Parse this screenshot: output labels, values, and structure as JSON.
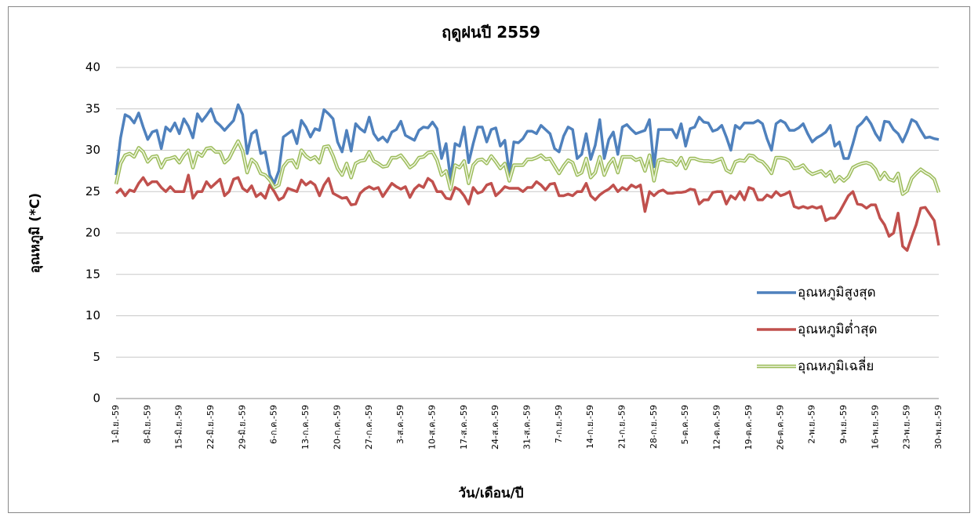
{
  "chart_data": {
    "type": "line",
    "title": "ฤดูฝนปี 2559",
    "x_label": "วัน/เดือน/ปี",
    "y_label": "อุณหภูมิ (*C)",
    "categories": [
      "1-มิ.ย.-59",
      null,
      null,
      null,
      null,
      null,
      null,
      "8-มิ.ย.-59",
      null,
      null,
      null,
      null,
      null,
      null,
      "15-มิ.ย.-59",
      null,
      null,
      null,
      null,
      null,
      null,
      "22-มิ.ย.-59",
      null,
      null,
      null,
      null,
      null,
      null,
      "29-มิ.ย.-59",
      null,
      null,
      null,
      null,
      null,
      null,
      "6-ก.ค.-59",
      null,
      null,
      null,
      null,
      null,
      null,
      "13-ก.ค.-59",
      null,
      null,
      null,
      null,
      null,
      null,
      "20-ก.ค.-59",
      null,
      null,
      null,
      null,
      null,
      null,
      "27-ก.ค.-59",
      null,
      null,
      null,
      null,
      null,
      null,
      "3-ส.ค.-59",
      null,
      null,
      null,
      null,
      null,
      null,
      "10-ส.ค.-59",
      null,
      null,
      null,
      null,
      null,
      null,
      "17-ส.ค.-59",
      null,
      null,
      null,
      null,
      null,
      null,
      "24-ส.ค.-59",
      null,
      null,
      null,
      null,
      null,
      null,
      "31-ส.ค.-59",
      null,
      null,
      null,
      null,
      null,
      null,
      "7-ก.ย.-59",
      null,
      null,
      null,
      null,
      null,
      null,
      "14-ก.ย.-59",
      null,
      null,
      null,
      null,
      null,
      null,
      "21-ก.ย.-59",
      null,
      null,
      null,
      null,
      null,
      null,
      "28-ก.ย.-59",
      null,
      null,
      null,
      null,
      null,
      null,
      "5-ต.ค.-59",
      null,
      null,
      null,
      null,
      null,
      null,
      "12-ต.ค.-59",
      null,
      null,
      null,
      null,
      null,
      null,
      "19-ต.ค.-59",
      null,
      null,
      null,
      null,
      null,
      null,
      "26-ต.ค.-59",
      null,
      null,
      null,
      null,
      null,
      null,
      "2-พ.ย.-59",
      null,
      null,
      null,
      null,
      null,
      null,
      "9-พ.ย.-59",
      null,
      null,
      null,
      null,
      null,
      null,
      "16-พ.ย.-59",
      null,
      null,
      null,
      null,
      null,
      null,
      "23-พ.ย.-59",
      null,
      null,
      null,
      null,
      null,
      null,
      "30-พ.ย.-59"
    ],
    "series": [
      {
        "name": "อุณหภูมิสูงสุด",
        "color": "#4f81bd",
        "values": [
          27,
          31.5,
          34.3,
          34,
          33.3,
          34.5,
          32.8,
          31.3,
          32.2,
          32.4,
          30.2,
          32.8,
          32.3,
          33.3,
          32,
          33.8,
          32.9,
          31.5,
          34.4,
          33.5,
          34.2,
          35,
          33.5,
          33,
          32.4,
          33,
          33.6,
          35.5,
          34.3,
          29.6,
          32,
          32.4,
          29.6,
          29.8,
          27,
          26,
          27.5,
          31.6,
          32,
          32.4,
          30.8,
          33.6,
          32.8,
          31.6,
          32.6,
          32.4,
          34.9,
          34.4,
          33.8,
          31,
          29.8,
          32.4,
          29.9,
          33.2,
          32.6,
          32.2,
          34,
          32,
          31.2,
          31.6,
          31,
          32.2,
          32.5,
          33.5,
          31.8,
          31.5,
          31.2,
          32.4,
          32.8,
          32.7,
          33.4,
          32.6,
          29,
          30.8,
          26.5,
          30.8,
          30.5,
          32.8,
          28.5,
          30.8,
          32.8,
          32.8,
          31,
          32.5,
          32.7,
          30.5,
          31.2,
          27.2,
          31,
          30.9,
          31.4,
          32.3,
          32.3,
          32,
          33,
          32.5,
          32,
          30.2,
          29.8,
          31.7,
          32.8,
          32.5,
          29,
          29.5,
          32,
          28.9,
          30.6,
          33.7,
          29,
          31.3,
          32.2,
          29.5,
          32.8,
          33.1,
          32.5,
          32,
          32.2,
          32.4,
          33.7,
          28,
          32.5,
          32.5,
          32.5,
          32.5,
          31.5,
          33.2,
          30.5,
          32.6,
          32.8,
          34,
          33.4,
          33.3,
          32.3,
          32.5,
          33,
          31.6,
          30,
          33,
          32.6,
          33.3,
          33.3,
          33.3,
          33.6,
          33.2,
          31.4,
          30,
          33.2,
          33.6,
          33.3,
          32.4,
          32.4,
          32.7,
          33.2,
          32,
          31,
          31.5,
          31.8,
          32.2,
          33,
          30.5,
          31,
          29,
          29,
          30.8,
          32.8,
          33.3,
          34,
          33.2,
          32,
          31.2,
          33.5,
          33.4,
          32.5,
          32,
          31,
          32.2,
          33.7,
          33.4,
          32.4,
          31.5,
          31.6,
          31.4,
          31.3
        ]
      },
      {
        "name": "อุณหภูมิต่ำสุด",
        "color": "#c0504d",
        "values": [
          24.8,
          25.3,
          24.5,
          25.2,
          25,
          26,
          26.7,
          25.8,
          26.2,
          26.2,
          25.5,
          25,
          25.6,
          25,
          25,
          25,
          27,
          24.2,
          25,
          25,
          26.2,
          25.5,
          26,
          26.5,
          24.5,
          25,
          26.5,
          26.7,
          25.4,
          25,
          25.7,
          24.4,
          24.8,
          24.2,
          25.8,
          25,
          24,
          24.3,
          25.4,
          25.2,
          25,
          26.4,
          25.8,
          26.2,
          25.8,
          24.5,
          25.8,
          26.6,
          24.8,
          24.5,
          24.2,
          24.3,
          23.4,
          23.5,
          24.8,
          25.3,
          25.6,
          25.3,
          25.5,
          24.4,
          25.2,
          26,
          25.6,
          25.3,
          25.6,
          24.3,
          25.3,
          25.8,
          25.5,
          26.6,
          26.2,
          25,
          25,
          24.2,
          24.1,
          25.5,
          25.2,
          24.5,
          23.5,
          25.5,
          24.8,
          25,
          25.8,
          26,
          24.5,
          25,
          25.6,
          25.4,
          25.4,
          25.4,
          25,
          25.5,
          25.5,
          26.2,
          25.8,
          25.2,
          25.9,
          26,
          24.5,
          24.5,
          24.7,
          24.5,
          25,
          25,
          26,
          24.5,
          24,
          24.6,
          25,
          25.3,
          25.8,
          25,
          25.5,
          25.2,
          25.8,
          25.5,
          25.8,
          22.6,
          25,
          24.5,
          25,
          25.2,
          24.8,
          24.8,
          24.9,
          24.9,
          25,
          25.3,
          25.2,
          23.5,
          24,
          24,
          24.9,
          25,
          25,
          23.5,
          24.5,
          24.1,
          25,
          24,
          25.5,
          25.3,
          24,
          24,
          24.6,
          24.3,
          25,
          24.5,
          24.7,
          25,
          23.2,
          23,
          23.2,
          23,
          23.2,
          23,
          23.2,
          21.5,
          21.8,
          21.8,
          22.5,
          23.5,
          24.5,
          25,
          23.5,
          23.4,
          23,
          23.4,
          23.4,
          21.8,
          21,
          19.6,
          20,
          22.4,
          18.4,
          17.9,
          19.5,
          21,
          23,
          23.1,
          22.3,
          21.5,
          18.5
        ]
      },
      {
        "name": "อุณหภูมิเฉลี่ย",
        "color": "#9bbb59",
        "values": [
          25.9,
          28.4,
          29.4,
          29.6,
          29.2,
          30.3,
          29.8,
          28.6,
          29.2,
          29.3,
          27.9,
          28.9,
          29,
          29.2,
          28.5,
          29.4,
          30,
          27.9,
          29.7,
          29.3,
          30.2,
          30.3,
          29.8,
          29.8,
          28.5,
          29,
          30.1,
          31.1,
          29.9,
          27.3,
          28.9,
          28.4,
          27.2,
          27,
          26.4,
          25.5,
          25.8,
          28,
          28.7,
          28.8,
          27.9,
          30,
          29.3,
          28.9,
          29.2,
          28.5,
          30.4,
          30.5,
          29.3,
          27.8,
          27,
          28.4,
          26.7,
          28.4,
          28.7,
          28.8,
          29.8,
          28.7,
          28.4,
          28,
          28.1,
          29.1,
          29.1,
          29.4,
          28.7,
          27.9,
          28.3,
          29.1,
          29.2,
          29.7,
          29.8,
          28.8,
          27,
          27.5,
          25.3,
          28.2,
          27.9,
          28.7,
          26,
          28.2,
          28.8,
          28.9,
          28.4,
          29.3,
          28.6,
          27.8,
          28.4,
          26.3,
          28.2,
          28.2,
          28.2,
          28.9,
          28.9,
          29.1,
          29.4,
          28.9,
          29,
          28.1,
          27.2,
          28.1,
          28.8,
          28.5,
          27,
          27.3,
          29,
          26.7,
          27.3,
          29.2,
          27,
          28.3,
          29,
          27.3,
          29.2,
          29.2,
          29.2,
          28.8,
          29,
          27.5,
          29.4,
          26.3,
          28.8,
          28.9,
          28.7,
          28.7,
          28.2,
          29.1,
          27.8,
          29,
          29,
          28.8,
          28.7,
          28.7,
          28.6,
          28.8,
          29,
          27.6,
          27.3,
          28.6,
          28.8,
          28.7,
          29.4,
          29.3,
          28.8,
          28.6,
          28,
          27.2,
          29.1,
          29.1,
          29,
          28.7,
          27.8,
          27.9,
          28.2,
          27.5,
          27.1,
          27.3,
          27.5,
          26.9,
          27.4,
          26.2,
          26.8,
          26.3,
          26.8,
          27.9,
          28.2,
          28.4,
          28.5,
          28.3,
          27.7,
          26.5,
          27.3,
          26.5,
          26.3,
          27.2,
          24.7,
          25.1,
          26.6,
          27.2,
          27.7,
          27.3,
          27,
          26.5,
          24.9
        ]
      }
    ],
    "ylim": [
      0,
      40
    ],
    "yticks": [
      0,
      5,
      10,
      15,
      20,
      25,
      30,
      35,
      40
    ],
    "grid": true,
    "legend": "right"
  }
}
